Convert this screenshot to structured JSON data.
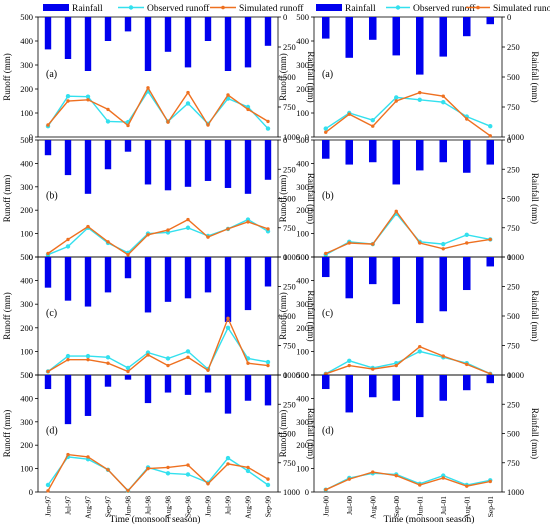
{
  "legend": {
    "rainfall": "Rainfall",
    "observed": "Observed runoff",
    "simulated": "Simulated runoff"
  },
  "axis_labels": {
    "left": "Runoff (mm)",
    "right": "Rainfall (mm)",
    "x": "Time (monsoon season)"
  },
  "colors": {
    "rainfall": "#0000ee",
    "observed": "#33e0ee",
    "simulated": "#ee7020",
    "axis": "#000000"
  },
  "chart_data": [
    {
      "type": "bar+line",
      "panel_label": "(a)",
      "categories": [
        "Jun-97",
        "Jul-97",
        "Aug-97",
        "Sep-97",
        "Jun-98",
        "Jul-98",
        "Aug-98",
        "Sep-98",
        "Jun-99",
        "Jul-99",
        "Aug-99",
        "Sep-99"
      ],
      "rainfall": [
        270,
        350,
        450,
        200,
        120,
        450,
        290,
        420,
        200,
        450,
        420,
        240
      ],
      "observed": [
        45,
        170,
        168,
        65,
        62,
        190,
        65,
        140,
        55,
        160,
        125,
        35
      ],
      "simulated": [
        50,
        150,
        155,
        115,
        48,
        205,
        62,
        185,
        50,
        175,
        115,
        65
      ],
      "xlabel": "",
      "ylabel": "Runoff (mm)",
      "y2label": "Rainfall (mm)",
      "ylim": [
        0,
        500
      ],
      "y2lim": [
        0,
        1000
      ],
      "yticks": [
        0,
        100,
        200,
        300,
        400,
        500
      ],
      "y2ticks": [
        0,
        250,
        500,
        750,
        1000
      ]
    },
    {
      "type": "bar+line",
      "panel_label": "(b)",
      "categories": [
        "Jun-97",
        "Jul-97",
        "Aug-97",
        "Sep-97",
        "Jun-98",
        "Jul-98",
        "Aug-98",
        "Sep-98",
        "Jun-99",
        "Jul-99",
        "Aug-99",
        "Sep-99"
      ],
      "rainfall": [
        130,
        300,
        460,
        250,
        100,
        380,
        430,
        400,
        350,
        410,
        460,
        340
      ],
      "observed": [
        10,
        45,
        125,
        60,
        18,
        100,
        105,
        125,
        90,
        120,
        160,
        110
      ],
      "simulated": [
        15,
        75,
        130,
        65,
        10,
        95,
        115,
        160,
        85,
        120,
        150,
        120
      ],
      "xlabel": "",
      "ylabel": "Runoff (mm)",
      "y2label": "Rainfall (mm)",
      "ylim": [
        0,
        500
      ],
      "y2lim": [
        0,
        1000
      ],
      "yticks": [
        0,
        100,
        200,
        300,
        400,
        500
      ],
      "y2ticks": [
        0,
        250,
        500,
        750,
        1000
      ]
    },
    {
      "type": "bar+line",
      "panel_label": "(c)",
      "categories": [
        "Jun-97",
        "Jul-97",
        "Aug-97",
        "Sep-97",
        "Jun-98",
        "Jul-98",
        "Aug-98",
        "Sep-98",
        "Jun-99",
        "Jul-99",
        "Aug-99",
        "Sep-99"
      ],
      "rainfall": [
        260,
        370,
        420,
        300,
        180,
        470,
        380,
        350,
        300,
        550,
        450,
        250
      ],
      "observed": [
        15,
        80,
        80,
        75,
        30,
        95,
        70,
        100,
        25,
        200,
        70,
        55
      ],
      "simulated": [
        15,
        65,
        65,
        50,
        15,
        85,
        40,
        75,
        20,
        240,
        50,
        40
      ],
      "xlabel": "",
      "ylabel": "Runoff (mm)",
      "y2label": "Rainfall (mm)",
      "ylim": [
        0,
        500
      ],
      "y2lim": [
        0,
        1000
      ],
      "yticks": [
        0,
        100,
        200,
        300,
        400,
        500
      ],
      "y2ticks": [
        0,
        250,
        500,
        750,
        1000
      ]
    },
    {
      "type": "bar+line",
      "panel_label": "(d)",
      "categories": [
        "Jun-97",
        "Jul-97",
        "Aug-97",
        "Sep-97",
        "Jun-98",
        "Jul-98",
        "Aug-98",
        "Sep-98",
        "Jun-99",
        "Jul-99",
        "Aug-99",
        "Sep-99"
      ],
      "rainfall": [
        120,
        420,
        350,
        100,
        40,
        240,
        150,
        170,
        150,
        330,
        220,
        260
      ],
      "observed": [
        30,
        150,
        140,
        95,
        5,
        105,
        80,
        75,
        40,
        145,
        90,
        30
      ],
      "simulated": [
        5,
        160,
        150,
        95,
        5,
        100,
        105,
        115,
        35,
        120,
        105,
        55
      ],
      "xlabel": "Time (monsoon season)",
      "ylabel": "Runoff (mm)",
      "y2label": "Rainfall (mm)",
      "ylim": [
        0,
        500
      ],
      "y2lim": [
        0,
        1000
      ],
      "yticks": [
        0,
        100,
        200,
        300,
        400,
        500
      ],
      "y2ticks": [
        0,
        250,
        500,
        750,
        1000
      ]
    },
    {
      "type": "bar+line",
      "panel_label": "(a)",
      "categories": [
        "Jun-00",
        "Jul-00",
        "Aug-00",
        "Sep-00",
        "Jun-01",
        "Jul-01",
        "Aug-01",
        "Sep-01"
      ],
      "rainfall": [
        180,
        340,
        190,
        320,
        480,
        330,
        160,
        60
      ],
      "observed": [
        35,
        100,
        70,
        165,
        155,
        145,
        85,
        45
      ],
      "simulated": [
        20,
        95,
        45,
        150,
        185,
        170,
        75,
        5
      ],
      "xlabel": "",
      "ylabel": "Runoff (mm)",
      "y2label": "Rainfall (mm)",
      "ylim": [
        0,
        500
      ],
      "y2lim": [
        0,
        1000
      ],
      "yticks": [
        0,
        100,
        200,
        300,
        400,
        500
      ],
      "y2ticks": [
        0,
        250,
        500,
        750,
        1000
      ]
    },
    {
      "type": "bar+line",
      "panel_label": "(b)",
      "categories": [
        "Jun-00",
        "Jul-00",
        "Aug-00",
        "Sep-00",
        "Jun-01",
        "Jul-01",
        "Aug-01",
        "Sep-01"
      ],
      "rainfall": [
        160,
        210,
        190,
        380,
        260,
        190,
        280,
        210
      ],
      "observed": [
        10,
        65,
        55,
        185,
        65,
        55,
        95,
        75
      ],
      "simulated": [
        15,
        60,
        55,
        195,
        60,
        35,
        60,
        75
      ],
      "xlabel": "",
      "ylabel": "Runoff (mm)",
      "y2label": "Rainfall (mm)",
      "ylim": [
        0,
        500
      ],
      "y2lim": [
        0,
        1000
      ],
      "yticks": [
        0,
        100,
        200,
        300,
        400,
        500
      ],
      "y2ticks": [
        0,
        250,
        500,
        750,
        1000
      ]
    },
    {
      "type": "bar+line",
      "panel_label": "(c)",
      "categories": [
        "Jun-00",
        "Jul-00",
        "Aug-00",
        "Sep-00",
        "Jun-01",
        "Jul-01",
        "Aug-01",
        "Sep-01"
      ],
      "rainfall": [
        170,
        350,
        230,
        400,
        560,
        460,
        280,
        80
      ],
      "observed": [
        5,
        60,
        30,
        50,
        100,
        75,
        50,
        5
      ],
      "simulated": [
        5,
        40,
        25,
        40,
        120,
        80,
        45,
        5
      ],
      "xlabel": "",
      "ylabel": "Runoff (mm)",
      "y2label": "Rainfall (mm)",
      "ylim": [
        0,
        500
      ],
      "y2lim": [
        0,
        1000
      ],
      "yticks": [
        0,
        100,
        200,
        300,
        400,
        500
      ],
      "y2ticks": [
        0,
        250,
        500,
        750,
        1000
      ]
    },
    {
      "type": "bar+line",
      "panel_label": "(d)",
      "categories": [
        "Jun-00",
        "Jul-00",
        "Aug-00",
        "Sep-00",
        "Jun-01",
        "Jul-01",
        "Aug-01",
        "Sep-01"
      ],
      "rainfall": [
        120,
        320,
        190,
        220,
        360,
        220,
        130,
        70
      ],
      "observed": [
        10,
        60,
        80,
        75,
        35,
        70,
        30,
        50
      ],
      "simulated": [
        10,
        55,
        85,
        70,
        30,
        60,
        25,
        45
      ],
      "xlabel": "Time (monsoon season)",
      "ylabel": "Runoff (mm)",
      "y2label": "Rainfall (mm)",
      "ylim": [
        0,
        500
      ],
      "y2lim": [
        0,
        1000
      ],
      "yticks": [
        0,
        100,
        200,
        300,
        400,
        500
      ],
      "y2ticks": [
        0,
        250,
        500,
        750,
        1000
      ]
    }
  ]
}
